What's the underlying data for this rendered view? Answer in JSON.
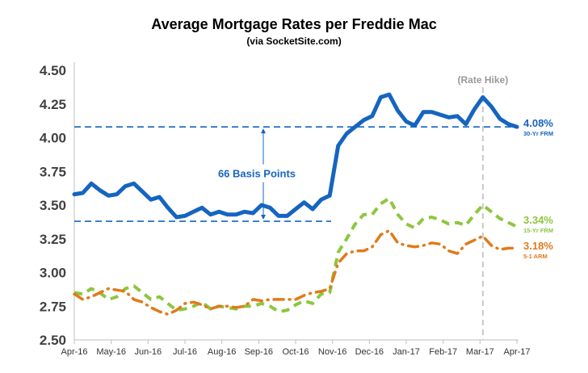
{
  "chart_data": {
    "type": "line",
    "title": "Average Mortgage Rates per Freddie Mac",
    "subtitle": "(via SocketSite.com)",
    "ylim": [
      2.5,
      4.5
    ],
    "y_ticks": [
      "2.50",
      "2.75",
      "3.00",
      "3.25",
      "3.50",
      "3.75",
      "4.00",
      "4.25",
      "4.50"
    ],
    "x_ticks": [
      "Apr-16",
      "May-16",
      "Jun-16",
      "Jul-16",
      "Aug-16",
      "Sep-16",
      "Oct-16",
      "Nov-16",
      "Dec-16",
      "Jan-17",
      "Feb-17",
      "Mar-17",
      "Apr-17"
    ],
    "grid": false,
    "series": [
      {
        "name": "30-Yr FRM",
        "color": "#1565c0",
        "style": "solid",
        "end_label": "4.08%",
        "values": [
          3.58,
          3.59,
          3.66,
          3.61,
          3.57,
          3.58,
          3.64,
          3.66,
          3.6,
          3.54,
          3.56,
          3.48,
          3.41,
          3.42,
          3.45,
          3.48,
          3.43,
          3.45,
          3.43,
          3.43,
          3.45,
          3.44,
          3.5,
          3.48,
          3.42,
          3.42,
          3.47,
          3.52,
          3.47,
          3.54,
          3.57,
          3.94,
          4.03,
          4.08,
          4.13,
          4.16,
          4.3,
          4.32,
          4.2,
          4.12,
          4.09,
          4.19,
          4.19,
          4.17,
          4.15,
          4.16,
          4.1,
          4.21,
          4.3,
          4.23,
          4.14,
          4.1,
          4.08
        ]
      },
      {
        "name": "15-Yr FRM",
        "color": "#8dc63f",
        "style": "dashed",
        "end_label": "3.34%",
        "values": [
          2.85,
          2.84,
          2.88,
          2.85,
          2.8,
          2.82,
          2.88,
          2.9,
          2.85,
          2.8,
          2.82,
          2.77,
          2.72,
          2.73,
          2.75,
          2.78,
          2.73,
          2.75,
          2.74,
          2.73,
          2.75,
          2.75,
          2.77,
          2.75,
          2.71,
          2.72,
          2.76,
          2.79,
          2.77,
          2.84,
          2.85,
          3.15,
          3.25,
          3.36,
          3.43,
          3.43,
          3.51,
          3.55,
          3.43,
          3.36,
          3.33,
          3.4,
          3.41,
          3.39,
          3.36,
          3.37,
          3.35,
          3.43,
          3.5,
          3.45,
          3.4,
          3.37,
          3.34
        ]
      },
      {
        "name": "5-1 ARM",
        "color": "#e07b1a",
        "style": "dashdot",
        "end_label": "3.18%",
        "values": [
          2.84,
          2.8,
          2.82,
          2.85,
          2.88,
          2.87,
          2.86,
          2.8,
          2.78,
          2.74,
          2.71,
          2.69,
          2.72,
          2.77,
          2.78,
          2.76,
          2.73,
          2.75,
          2.75,
          2.74,
          2.75,
          2.8,
          2.79,
          2.8,
          2.8,
          2.8,
          2.8,
          2.83,
          2.85,
          2.86,
          2.88,
          3.07,
          3.14,
          3.16,
          3.16,
          3.19,
          3.28,
          3.31,
          3.22,
          3.2,
          3.19,
          3.2,
          3.22,
          3.21,
          3.16,
          3.14,
          3.21,
          3.24,
          3.27,
          3.2,
          3.17,
          3.18,
          3.18
        ]
      }
    ],
    "annotations": {
      "rate_hike": "(Rate Hike)",
      "basis_points": "66 Basis Points",
      "bp_upper": 4.08,
      "bp_lower": 3.38,
      "rate_hike_at": 48
    }
  }
}
